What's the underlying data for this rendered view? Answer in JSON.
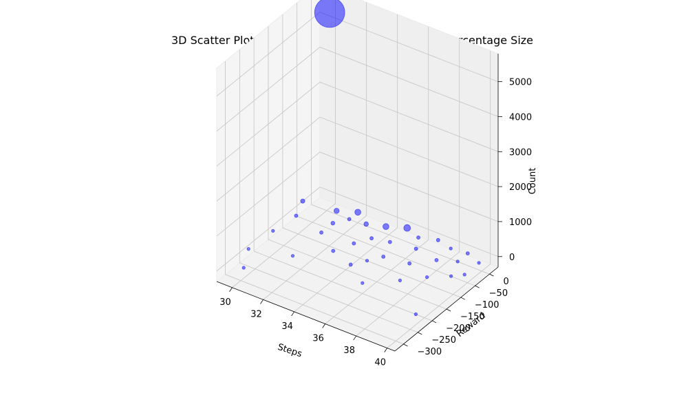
{
  "chart_data": {
    "type": "scatter",
    "projection": "3d",
    "title": "3D Scatter Plot of Steps vs Reward vs Count with Percentage Size",
    "xlabel": "Steps",
    "ylabel": "Reward",
    "zlabel": "Count",
    "xlim": [
      29,
      40.5
    ],
    "ylim": [
      -330,
      30
    ],
    "zlim": [
      -300,
      5800
    ],
    "xticks": [
      30,
      32,
      34,
      36,
      38,
      40
    ],
    "yticks": [
      0,
      -50,
      -100,
      -150,
      -200,
      -250,
      -300
    ],
    "zticks": [
      0,
      1000,
      2000,
      3000,
      4000,
      5000
    ],
    "grid": true,
    "marker_color": "#0000ff",
    "marker_alpha": 0.5,
    "size_encoding": "percentage",
    "points": [
      {
        "x": 30,
        "y": 10,
        "z": 5300,
        "pct": 30
      },
      {
        "x": 29,
        "y": -30,
        "z": 0,
        "pct": 0.6
      },
      {
        "x": 29.5,
        "y": -80,
        "z": 0,
        "pct": 0.4
      },
      {
        "x": 29.3,
        "y": -150,
        "z": 0,
        "pct": 0.3
      },
      {
        "x": 29.2,
        "y": -230,
        "z": 0,
        "pct": 0.3
      },
      {
        "x": 30,
        "y": -290,
        "z": 0,
        "pct": 0.3
      },
      {
        "x": 31,
        "y": -20,
        "z": 0,
        "pct": 0.9
      },
      {
        "x": 31.5,
        "y": -60,
        "z": 0,
        "pct": 0.5
      },
      {
        "x": 31.5,
        "y": -100,
        "z": 0,
        "pct": 0.4
      },
      {
        "x": 31.5,
        "y": -200,
        "z": 0,
        "pct": 0.3
      },
      {
        "x": 32,
        "y": -30,
        "z": 0,
        "pct": 0.4
      },
      {
        "x": 32,
        "y": 0,
        "z": 0,
        "pct": 1.2
      },
      {
        "x": 33,
        "y": -25,
        "z": 0,
        "pct": 0.7
      },
      {
        "x": 33,
        "y": -140,
        "z": 0,
        "pct": 0.4
      },
      {
        "x": 33.5,
        "y": -95,
        "z": 0,
        "pct": 0.4
      },
      {
        "x": 34,
        "y": -10,
        "z": 0,
        "pct": 1.2
      },
      {
        "x": 34,
        "y": -60,
        "z": 0,
        "pct": 0.4
      },
      {
        "x": 34.5,
        "y": -160,
        "z": 0,
        "pct": 0.4
      },
      {
        "x": 35,
        "y": 10,
        "z": 0,
        "pct": 1.5
      },
      {
        "x": 35,
        "y": -50,
        "z": 0,
        "pct": 0.4
      },
      {
        "x": 35,
        "y": -130,
        "z": 0,
        "pct": 0.3
      },
      {
        "x": 35.5,
        "y": -100,
        "z": 0,
        "pct": 0.4
      },
      {
        "x": 36,
        "y": -5,
        "z": 0,
        "pct": 0.4
      },
      {
        "x": 36,
        "y": -200,
        "z": 0,
        "pct": 0.3
      },
      {
        "x": 36.5,
        "y": -40,
        "z": 0,
        "pct": 0.4
      },
      {
        "x": 37,
        "y": 10,
        "z": 0,
        "pct": 0.4
      },
      {
        "x": 37,
        "y": -90,
        "z": 0,
        "pct": 0.4
      },
      {
        "x": 37.5,
        "y": -150,
        "z": 0,
        "pct": 0.3
      },
      {
        "x": 38,
        "y": 0,
        "z": 0,
        "pct": 0.3
      },
      {
        "x": 38,
        "y": -50,
        "z": 0,
        "pct": 0.4
      },
      {
        "x": 38.5,
        "y": -110,
        "z": 0,
        "pct": 0.3
      },
      {
        "x": 39,
        "y": 5,
        "z": 0,
        "pct": 0.4
      },
      {
        "x": 39,
        "y": -30,
        "z": 0,
        "pct": 0.3
      },
      {
        "x": 39.5,
        "y": -80,
        "z": 0,
        "pct": 0.3
      },
      {
        "x": 40,
        "y": -10,
        "z": 0,
        "pct": 0.3
      },
      {
        "x": 40,
        "y": -60,
        "z": 0,
        "pct": 0.3
      },
      {
        "x": 40,
        "y": -230,
        "z": 0,
        "pct": 0.3
      }
    ]
  }
}
